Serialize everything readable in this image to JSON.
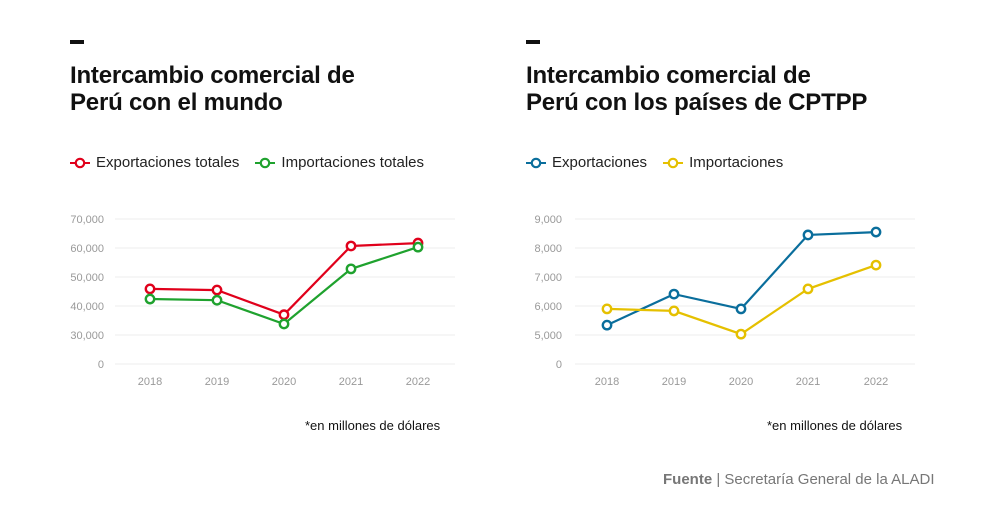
{
  "chart_data": [
    {
      "type": "line",
      "title": "Intercambio comercial de Perú con el mundo",
      "title_lines": [
        "Intercambio comercial de",
        "Perú con el mundo"
      ],
      "x": [
        "2018",
        "2019",
        "2020",
        "2021",
        "2022"
      ],
      "yticks": [
        0,
        30000,
        40000,
        50000,
        60000,
        70000
      ],
      "ytick_labels": [
        "0",
        "30,000",
        "40,000",
        "50,000",
        "60,000",
        "70,000"
      ],
      "ylim": [
        0,
        70000
      ],
      "grid": true,
      "legend_position": "top-left",
      "series": [
        {
          "name": "Exportaciones totales",
          "color": "#e0001b",
          "values": [
            45900,
            45500,
            37000,
            60700,
            61700
          ]
        },
        {
          "name": "Importaciones totales",
          "color": "#1fa22e",
          "values": [
            42400,
            42000,
            33800,
            52800,
            60300
          ]
        }
      ],
      "note": "*en millones de dólares"
    },
    {
      "type": "line",
      "title": "Intercambio comercial de Perú con los países de CPTPP",
      "title_lines": [
        "Intercambio comercial de",
        "Perú con los países de CPTPP"
      ],
      "x": [
        "2018",
        "2019",
        "2020",
        "2021",
        "2022"
      ],
      "yticks": [
        0,
        5000,
        6000,
        7000,
        8000,
        9000
      ],
      "ytick_labels": [
        "0",
        "5,000",
        "6,000",
        "7,000",
        "8,000",
        "9,000"
      ],
      "ylim": [
        0,
        9000
      ],
      "grid": true,
      "legend_position": "top-left",
      "series": [
        {
          "name": "Exportaciones",
          "color": "#0a6e9c",
          "values": [
            5340,
            6410,
            5900,
            8450,
            8550
          ]
        },
        {
          "name": "Importaciones",
          "color": "#e5c000",
          "values": [
            5900,
            5830,
            5030,
            6590,
            7410
          ]
        }
      ],
      "note": "*en millones de dólares"
    }
  ],
  "source": {
    "label": "Fuente",
    "text": "Secretaría General de la ALADI"
  }
}
